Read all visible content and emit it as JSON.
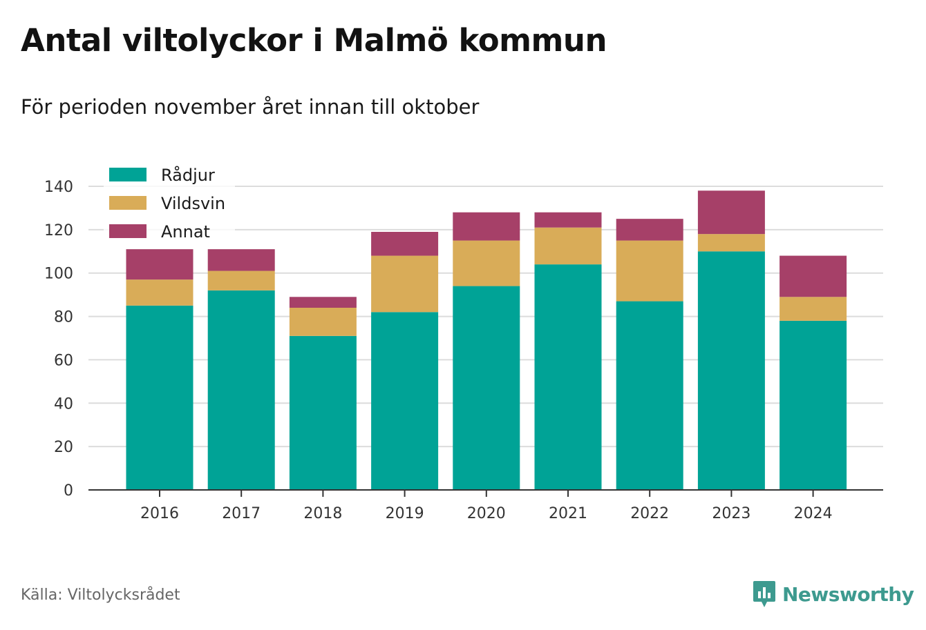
{
  "title": "Antal viltolyckor i Malmö kommun",
  "subtitle": "För perioden november året innan till oktober",
  "source": "Källa: Viltolycksrådet",
  "brand": {
    "name": "Newsworthy",
    "icon": "newsworthy-logo-icon",
    "color": "#3d9a8f"
  },
  "chart_data": {
    "type": "bar",
    "stacked": true,
    "categories": [
      "2016",
      "2017",
      "2018",
      "2019",
      "2020",
      "2021",
      "2022",
      "2023",
      "2024"
    ],
    "series": [
      {
        "name": "Rådjur",
        "color": "#00a396",
        "values": [
          85,
          92,
          71,
          82,
          94,
          104,
          87,
          110,
          78
        ]
      },
      {
        "name": "Vildsvin",
        "color": "#d9ac58",
        "values": [
          12,
          9,
          13,
          26,
          21,
          17,
          28,
          8,
          11
        ]
      },
      {
        "name": "Annat",
        "color": "#a64068",
        "values": [
          14,
          10,
          5,
          11,
          13,
          7,
          10,
          20,
          19
        ]
      }
    ],
    "ylim": [
      0,
      140
    ],
    "yticks": [
      0,
      20,
      40,
      60,
      80,
      100,
      120,
      140
    ],
    "grid": true,
    "legend_position": "top-left"
  }
}
